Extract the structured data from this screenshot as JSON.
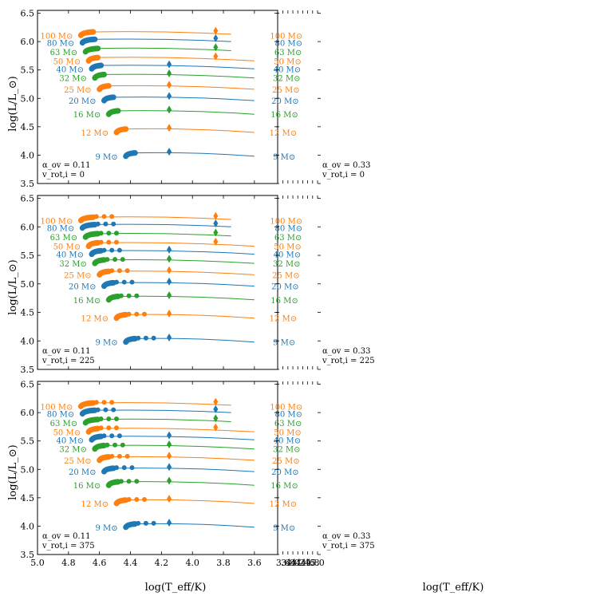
{
  "chart_data": {
    "type": "line",
    "title": "",
    "xlabel": "log(T_eff/K)",
    "ylabel": "log(L/L_⊙)",
    "xlim": [
      5.0,
      3.45
    ],
    "ylim": [
      3.5,
      6.55
    ],
    "xticks": [
      "5.0",
      "4.8",
      "4.6",
      "4.4",
      "4.2",
      "4.0",
      "3.8",
      "3.6"
    ],
    "xtick_values": [
      5.0,
      4.8,
      4.6,
      4.4,
      4.2,
      4.0,
      3.8,
      3.6
    ],
    "yticks": [
      "3.5",
      "4.0",
      "4.5",
      "5.0",
      "5.5",
      "6.0",
      "6.5"
    ],
    "ytick_values": [
      3.5,
      4.0,
      4.5,
      5.0,
      5.5,
      6.0,
      6.5
    ],
    "colors": {
      "blue": "#1f77b4",
      "orange": "#ff7f0e",
      "green": "#2ca02c"
    },
    "masses": [
      {
        "label": "100 M⊙",
        "color": "orange",
        "zams_teff": 4.72,
        "zams_l": 6.11
      },
      {
        "label": "80 M⊙",
        "color": "blue",
        "zams_teff": 4.71,
        "zams_l": 5.98
      },
      {
        "label": "63 M⊙",
        "color": "green",
        "zams_teff": 4.69,
        "zams_l": 5.82
      },
      {
        "label": "50 M⊙",
        "color": "orange",
        "zams_teff": 4.67,
        "zams_l": 5.66
      },
      {
        "label": "40 M⊙",
        "color": "blue",
        "zams_teff": 4.65,
        "zams_l": 5.52
      },
      {
        "label": "32 M⊙",
        "color": "green",
        "zams_teff": 4.63,
        "zams_l": 5.36
      },
      {
        "label": "25 M⊙",
        "color": "orange",
        "zams_teff": 4.6,
        "zams_l": 5.16
      },
      {
        "label": "20 M⊙",
        "color": "blue",
        "zams_teff": 4.57,
        "zams_l": 4.96
      },
      {
        "label": "16 M⊙",
        "color": "green",
        "zams_teff": 4.54,
        "zams_l": 4.72
      },
      {
        "label": "12 M⊙",
        "color": "orange",
        "zams_teff": 4.49,
        "zams_l": 4.4
      },
      {
        "label": "9 M⊙",
        "color": "blue",
        "zams_teff": 4.43,
        "zams_l": 3.98
      }
    ],
    "panels": [
      {
        "alpha": "α_ov = 0.11",
        "vrot": "v_rot,i = 0",
        "alpha_value": 0.11,
        "vrot_value": 0
      },
      {
        "alpha": "α_ov = 0.33",
        "vrot": "v_rot,i = 0",
        "alpha_value": 0.33,
        "vrot_value": 0
      },
      {
        "alpha": "α_ov = 0.11",
        "vrot": "v_rot,i = 225",
        "alpha_value": 0.11,
        "vrot_value": 225
      },
      {
        "alpha": "α_ov = 0.33",
        "vrot": "v_rot,i = 225",
        "alpha_value": 0.33,
        "vrot_value": 225
      },
      {
        "alpha": "α_ov = 0.11",
        "vrot": "v_rot,i = 375",
        "alpha_value": 0.11,
        "vrot_value": 375
      },
      {
        "alpha": "α_ov = 0.33",
        "vrot": "v_rot,i = 375",
        "alpha_value": 0.33,
        "vrot_value": 375
      }
    ]
  }
}
